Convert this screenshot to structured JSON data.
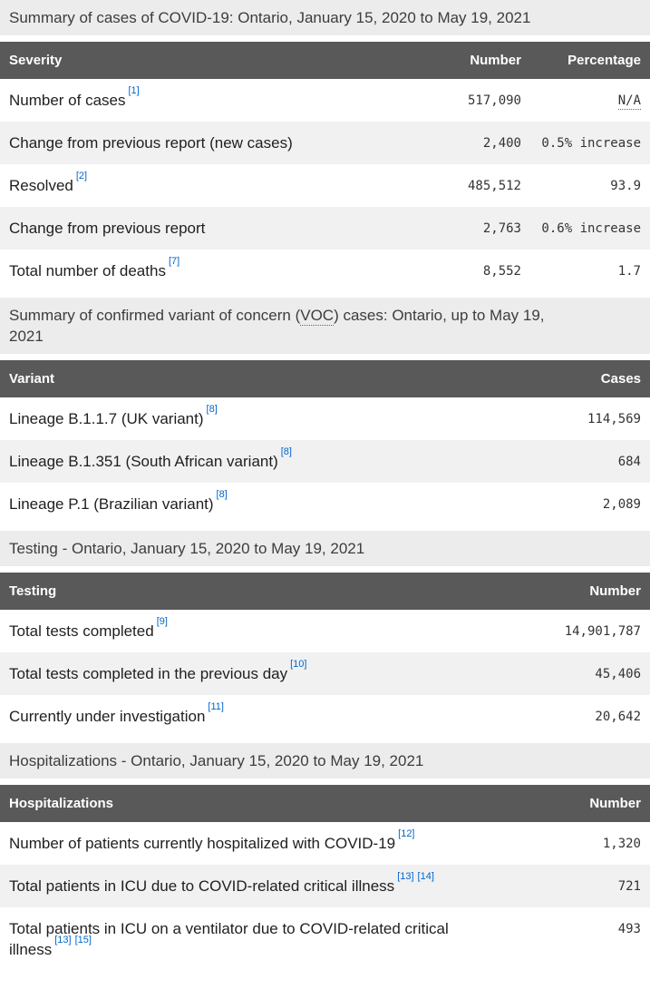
{
  "colors": {
    "header_bg": "#595959",
    "header_text": "#ffffff",
    "caption_bg": "#ececec",
    "row_alt_bg": "#f1f1f1",
    "footnote_link": "#0066cc",
    "body_text": "#1f1f1f",
    "number_text": "#333333"
  },
  "severity": {
    "caption": "Summary of cases of COVID-19: Ontario, January 15, 2020 to May 19, 2021",
    "columns": [
      "Severity",
      "Number",
      "Percentage"
    ],
    "rows": [
      {
        "label": "Number of cases",
        "refs": [
          "[1]"
        ],
        "number": "517,090",
        "percentage": "N/A"
      },
      {
        "label": "Change from previous report (new cases)",
        "refs": [],
        "number": "2,400",
        "percentage": "0.5% increase"
      },
      {
        "label": "Resolved",
        "refs": [
          "[2]"
        ],
        "number": "485,512",
        "percentage": "93.9"
      },
      {
        "label": "Change from previous report",
        "refs": [],
        "number": "2,763",
        "percentage": "0.6% increase"
      },
      {
        "label": "Total number of deaths",
        "refs": [
          "[7]"
        ],
        "number": "8,552",
        "percentage": "1.7"
      }
    ]
  },
  "voc": {
    "caption_prefix": "Summary of confirmed variant of concern (",
    "caption_abbr": "VOC",
    "caption_suffix": ") cases: Ontario, up to May 19, 2021",
    "columns": [
      "Variant",
      "Cases"
    ],
    "rows": [
      {
        "label": "Lineage B.1.1.7 (UK variant)",
        "refs": [
          "[8]"
        ],
        "number": "114,569"
      },
      {
        "label": "Lineage B.1.351 (South African variant)",
        "refs": [
          "[8]"
        ],
        "number": "684"
      },
      {
        "label": "Lineage P.1 (Brazilian variant)",
        "refs": [
          "[8]"
        ],
        "number": "2,089"
      }
    ]
  },
  "testing": {
    "caption": "Testing - Ontario, January 15, 2020 to May 19, 2021",
    "columns": [
      "Testing",
      "Number"
    ],
    "rows": [
      {
        "label": "Total tests completed",
        "refs": [
          "[9]"
        ],
        "number": "14,901,787"
      },
      {
        "label": "Total tests completed in the previous day",
        "refs": [
          "[10]"
        ],
        "number": "45,406"
      },
      {
        "label": "Currently under investigation",
        "refs": [
          "[11]"
        ],
        "number": "20,642"
      }
    ]
  },
  "hospitalizations": {
    "caption": "Hospitalizations - Ontario, January 15, 2020 to May 19, 2021",
    "columns": [
      "Hospitalizations",
      "Number"
    ],
    "rows": [
      {
        "label": "Number of patients currently hospitalized with COVID-19",
        "refs": [
          "[12]"
        ],
        "number": "1,320"
      },
      {
        "label": "Total patients in ICU due to COVID-related critical illness",
        "refs": [
          "[13]",
          "[14]"
        ],
        "number": "721"
      },
      {
        "label": "Total patients in ICU on a ventilator due to COVID-related critical illness",
        "refs": [
          "[13]",
          "[15]"
        ],
        "number": "493"
      }
    ]
  }
}
